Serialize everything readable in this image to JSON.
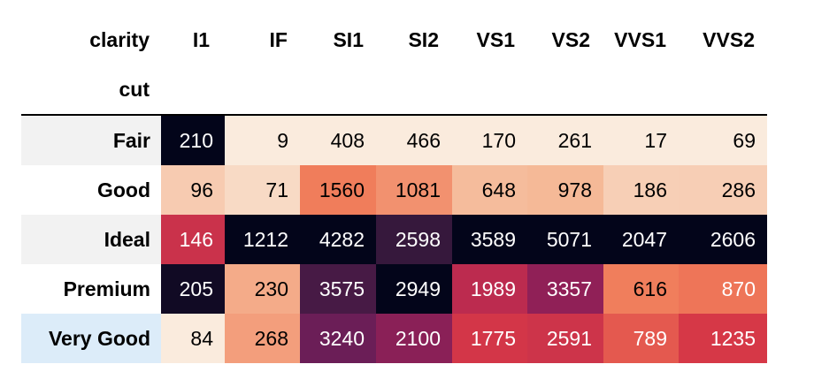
{
  "chart_data": {
    "type": "heatmap",
    "column_axis_name": "clarity",
    "row_axis_name": "cut",
    "columns": [
      "I1",
      "IF",
      "SI1",
      "SI2",
      "VS1",
      "VS2",
      "VVS1",
      "VVS2"
    ],
    "rows": [
      "Fair",
      "Good",
      "Ideal",
      "Premium",
      "Very Good"
    ],
    "values": [
      [
        210,
        9,
        408,
        466,
        170,
        261,
        17,
        69
      ],
      [
        96,
        71,
        1560,
        1081,
        648,
        978,
        186,
        286
      ],
      [
        146,
        1212,
        4282,
        2598,
        3589,
        5071,
        2047,
        2606
      ],
      [
        205,
        230,
        3575,
        2949,
        1989,
        3357,
        616,
        870
      ],
      [
        84,
        268,
        3240,
        2100,
        1775,
        2591,
        789,
        1235
      ]
    ],
    "colormap": "rocket_r",
    "color_scaling": "per-column",
    "grid": false
  },
  "row_header_background": [
    "#f2f2f2",
    "#ffffff",
    "#f2f2f2",
    "#ffffff",
    "#dcecf9"
  ]
}
